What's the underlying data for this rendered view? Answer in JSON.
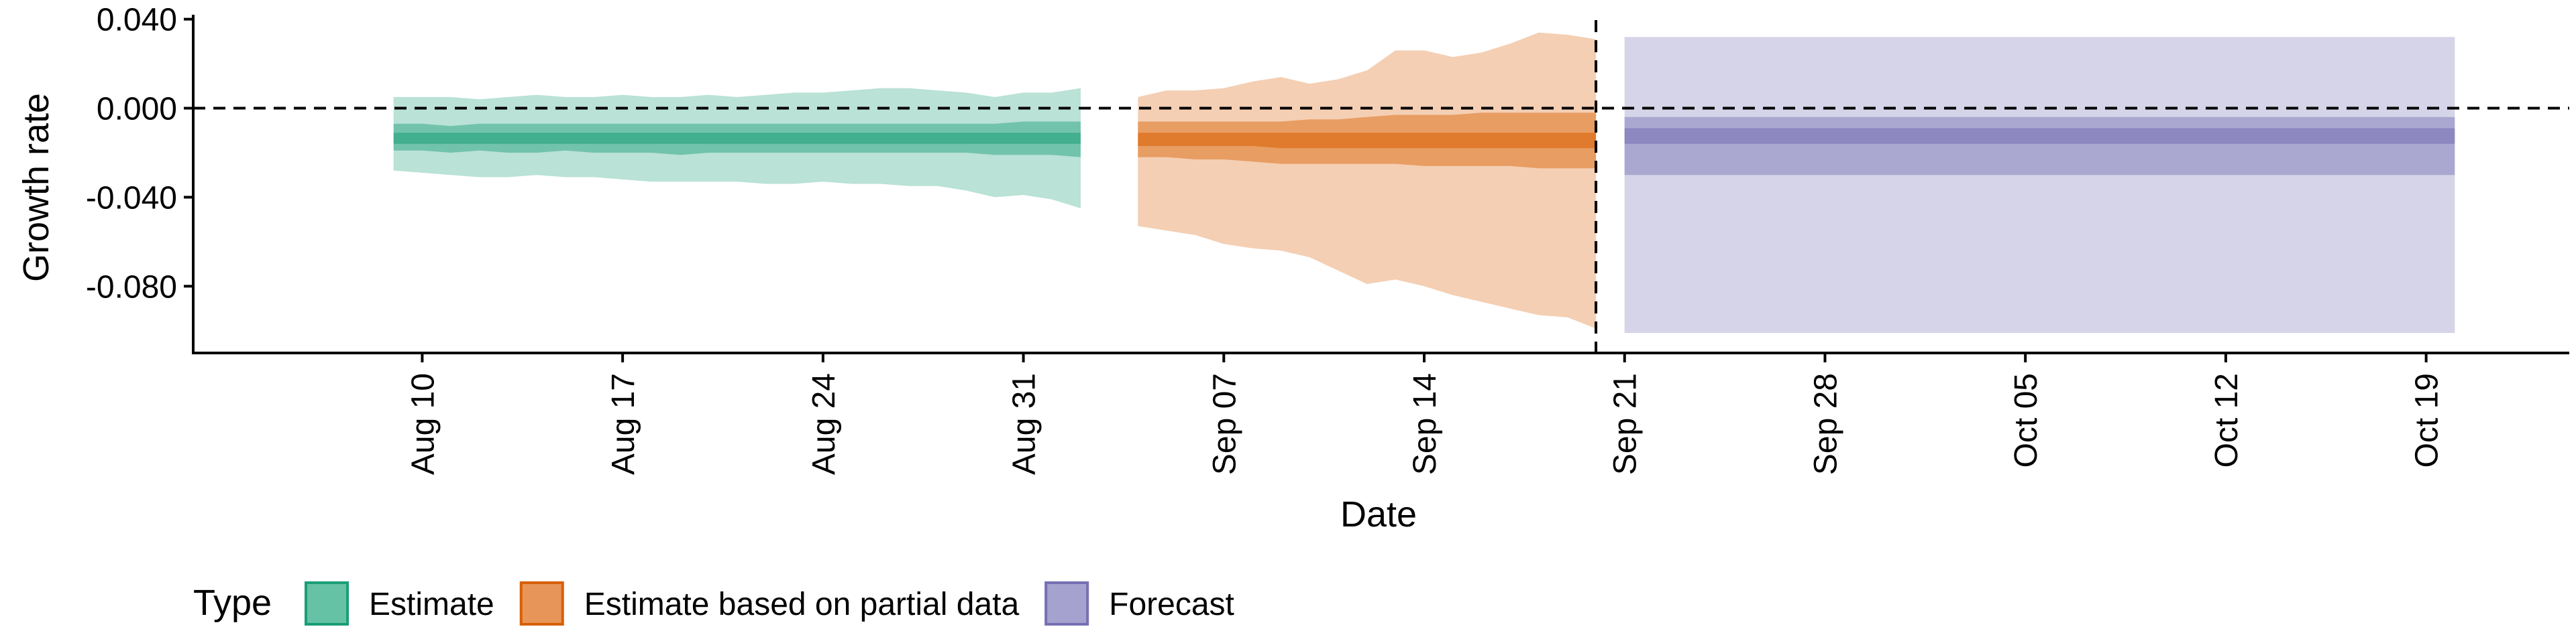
{
  "chart_data": {
    "type": "area",
    "xlabel": "Date",
    "ylabel": "Growth rate",
    "xlim": [
      "2020-08-02",
      "2020-10-24"
    ],
    "ylim": [
      -0.11,
      0.042
    ],
    "yticks": [
      0.04,
      0.0,
      -0.04,
      -0.08
    ],
    "ytick_labels": [
      "0.040",
      "0.000",
      "-0.040",
      "-0.080"
    ],
    "xticks": [
      "2020-08-10",
      "2020-08-17",
      "2020-08-24",
      "2020-08-31",
      "2020-09-07",
      "2020-09-14",
      "2020-09-21",
      "2020-09-28",
      "2020-10-05",
      "2020-10-12",
      "2020-10-19"
    ],
    "xtick_labels": [
      "Aug 10",
      "Aug 17",
      "Aug 24",
      "Aug 31",
      "Sep 07",
      "Sep 14",
      "Sep 21",
      "Sep 28",
      "Oct 05",
      "Oct 12",
      "Oct 19"
    ],
    "hline": 0.0,
    "vline": "2020-09-20",
    "grid": false,
    "legend": {
      "title": "Type",
      "position": "bottom-left",
      "entries": [
        {
          "name": "Estimate",
          "color": "#66C2A5",
          "border": "#1B9E77"
        },
        {
          "name": "Estimate based on partial data",
          "color": "#E8955A",
          "border": "#D95F02"
        },
        {
          "name": "Forecast",
          "color": "#A6A2CF",
          "border": "#7570B3"
        }
      ]
    },
    "series": [
      {
        "name": "Estimate",
        "color": "#1B9E77",
        "x": [
          "2020-08-09",
          "2020-08-10",
          "2020-08-11",
          "2020-08-12",
          "2020-08-13",
          "2020-08-14",
          "2020-08-15",
          "2020-08-16",
          "2020-08-17",
          "2020-08-18",
          "2020-08-19",
          "2020-08-20",
          "2020-08-21",
          "2020-08-22",
          "2020-08-23",
          "2020-08-24",
          "2020-08-25",
          "2020-08-26",
          "2020-08-27",
          "2020-08-28",
          "2020-08-29",
          "2020-08-30",
          "2020-08-31",
          "2020-09-01",
          "2020-09-02"
        ],
        "median": [
          -0.013,
          -0.013,
          -0.013,
          -0.013,
          -0.013,
          -0.013,
          -0.013,
          -0.013,
          -0.013,
          -0.013,
          -0.013,
          -0.013,
          -0.013,
          -0.013,
          -0.013,
          -0.013,
          -0.013,
          -0.013,
          -0.013,
          -0.013,
          -0.013,
          -0.013,
          -0.013,
          -0.013,
          -0.013
        ],
        "lower_20": [
          -0.016,
          -0.016,
          -0.016,
          -0.016,
          -0.016,
          -0.016,
          -0.016,
          -0.016,
          -0.016,
          -0.016,
          -0.016,
          -0.016,
          -0.016,
          -0.016,
          -0.016,
          -0.016,
          -0.016,
          -0.016,
          -0.016,
          -0.016,
          -0.016,
          -0.016,
          -0.016,
          -0.016,
          -0.016
        ],
        "upper_20": [
          -0.011,
          -0.011,
          -0.011,
          -0.011,
          -0.011,
          -0.011,
          -0.011,
          -0.011,
          -0.011,
          -0.011,
          -0.011,
          -0.011,
          -0.011,
          -0.011,
          -0.011,
          -0.011,
          -0.011,
          -0.011,
          -0.011,
          -0.011,
          -0.011,
          -0.011,
          -0.011,
          -0.011,
          -0.011
        ],
        "lower_50": [
          -0.019,
          -0.019,
          -0.02,
          -0.019,
          -0.02,
          -0.02,
          -0.019,
          -0.02,
          -0.02,
          -0.02,
          -0.021,
          -0.02,
          -0.02,
          -0.02,
          -0.02,
          -0.02,
          -0.02,
          -0.02,
          -0.02,
          -0.02,
          -0.02,
          -0.021,
          -0.021,
          -0.021,
          -0.022
        ],
        "upper_50": [
          -0.007,
          -0.007,
          -0.008,
          -0.007,
          -0.007,
          -0.007,
          -0.007,
          -0.007,
          -0.007,
          -0.007,
          -0.007,
          -0.007,
          -0.007,
          -0.007,
          -0.007,
          -0.007,
          -0.007,
          -0.007,
          -0.007,
          -0.007,
          -0.007,
          -0.007,
          -0.006,
          -0.006,
          -0.006
        ],
        "lower_90": [
          -0.028,
          -0.029,
          -0.03,
          -0.031,
          -0.031,
          -0.03,
          -0.031,
          -0.031,
          -0.032,
          -0.033,
          -0.033,
          -0.033,
          -0.033,
          -0.034,
          -0.034,
          -0.033,
          -0.034,
          -0.034,
          -0.035,
          -0.035,
          -0.037,
          -0.04,
          -0.039,
          -0.041,
          -0.045
        ],
        "upper_90": [
          0.005,
          0.005,
          0.005,
          0.004,
          0.005,
          0.006,
          0.005,
          0.005,
          0.006,
          0.005,
          0.005,
          0.006,
          0.005,
          0.006,
          0.007,
          0.007,
          0.008,
          0.009,
          0.009,
          0.008,
          0.007,
          0.005,
          0.007,
          0.007,
          0.009
        ]
      },
      {
        "name": "Estimate based on partial data",
        "color": "#D95F02",
        "x": [
          "2020-09-04",
          "2020-09-05",
          "2020-09-06",
          "2020-09-07",
          "2020-09-08",
          "2020-09-09",
          "2020-09-10",
          "2020-09-11",
          "2020-09-12",
          "2020-09-13",
          "2020-09-14",
          "2020-09-15",
          "2020-09-16",
          "2020-09-17",
          "2020-09-18",
          "2020-09-19",
          "2020-09-20"
        ],
        "median": [
          -0.014,
          -0.014,
          -0.014,
          -0.014,
          -0.014,
          -0.014,
          -0.014,
          -0.014,
          -0.014,
          -0.014,
          -0.014,
          -0.014,
          -0.014,
          -0.014,
          -0.014,
          -0.014,
          -0.014
        ],
        "lower_20": [
          -0.017,
          -0.017,
          -0.017,
          -0.017,
          -0.017,
          -0.018,
          -0.018,
          -0.018,
          -0.018,
          -0.018,
          -0.018,
          -0.018,
          -0.018,
          -0.018,
          -0.018,
          -0.018,
          -0.018
        ],
        "upper_20": [
          -0.011,
          -0.011,
          -0.011,
          -0.011,
          -0.011,
          -0.011,
          -0.011,
          -0.011,
          -0.011,
          -0.011,
          -0.011,
          -0.011,
          -0.011,
          -0.011,
          -0.011,
          -0.011,
          -0.011
        ],
        "lower_50": [
          -0.022,
          -0.022,
          -0.023,
          -0.023,
          -0.024,
          -0.025,
          -0.025,
          -0.025,
          -0.025,
          -0.025,
          -0.026,
          -0.026,
          -0.026,
          -0.026,
          -0.027,
          -0.027,
          -0.027
        ],
        "upper_50": [
          -0.006,
          -0.006,
          -0.006,
          -0.006,
          -0.006,
          -0.006,
          -0.005,
          -0.005,
          -0.004,
          -0.003,
          -0.003,
          -0.003,
          -0.002,
          -0.002,
          -0.002,
          -0.002,
          -0.002
        ],
        "lower_90": [
          -0.053,
          -0.055,
          -0.057,
          -0.061,
          -0.063,
          -0.064,
          -0.067,
          -0.073,
          -0.079,
          -0.077,
          -0.08,
          -0.084,
          -0.087,
          -0.09,
          -0.093,
          -0.094,
          -0.099
        ],
        "upper_90": [
          0.005,
          0.008,
          0.008,
          0.009,
          0.012,
          0.014,
          0.011,
          0.013,
          0.017,
          0.026,
          0.026,
          0.023,
          0.025,
          0.029,
          0.034,
          0.033,
          0.031
        ]
      },
      {
        "name": "Forecast",
        "color": "#7570B3",
        "x": [
          "2020-09-21",
          "2020-10-20"
        ],
        "median": [
          -0.013,
          -0.013
        ],
        "lower_20": [
          -0.016,
          -0.016
        ],
        "upper_20": [
          -0.009,
          -0.009
        ],
        "lower_50": [
          -0.03,
          -0.03
        ],
        "upper_50": [
          -0.004,
          -0.004
        ],
        "lower_90": [
          -0.101,
          -0.101
        ],
        "upper_90": [
          0.032,
          0.032
        ]
      }
    ]
  }
}
